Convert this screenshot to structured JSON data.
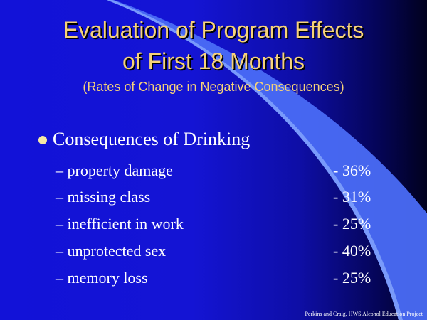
{
  "slide": {
    "title_line1": "Evaluation of Program Effects",
    "title_line2": "of First 18 Months",
    "subtitle": "(Rates of Change in Negative Consequences)",
    "bullet": "Consequences of Drinking",
    "items": [
      {
        "label": "– property damage",
        "value": "- 36%"
      },
      {
        "label": "– missing class",
        "value": "- 31%"
      },
      {
        "label": "– inefficient in work",
        "value": "- 25%"
      },
      {
        "label": "– unprotected sex",
        "value": "- 40%"
      },
      {
        "label": "– memory loss",
        "value": "- 25%"
      }
    ],
    "footer": "Perkins and Craig, HWS Alcohol Education Project"
  },
  "colors": {
    "title": "#f6d27a",
    "body_text": "#ffffff",
    "background": "#1414d4",
    "swoosh": "#4a6cf5",
    "swoosh_highlight": "#8fb0ff"
  }
}
